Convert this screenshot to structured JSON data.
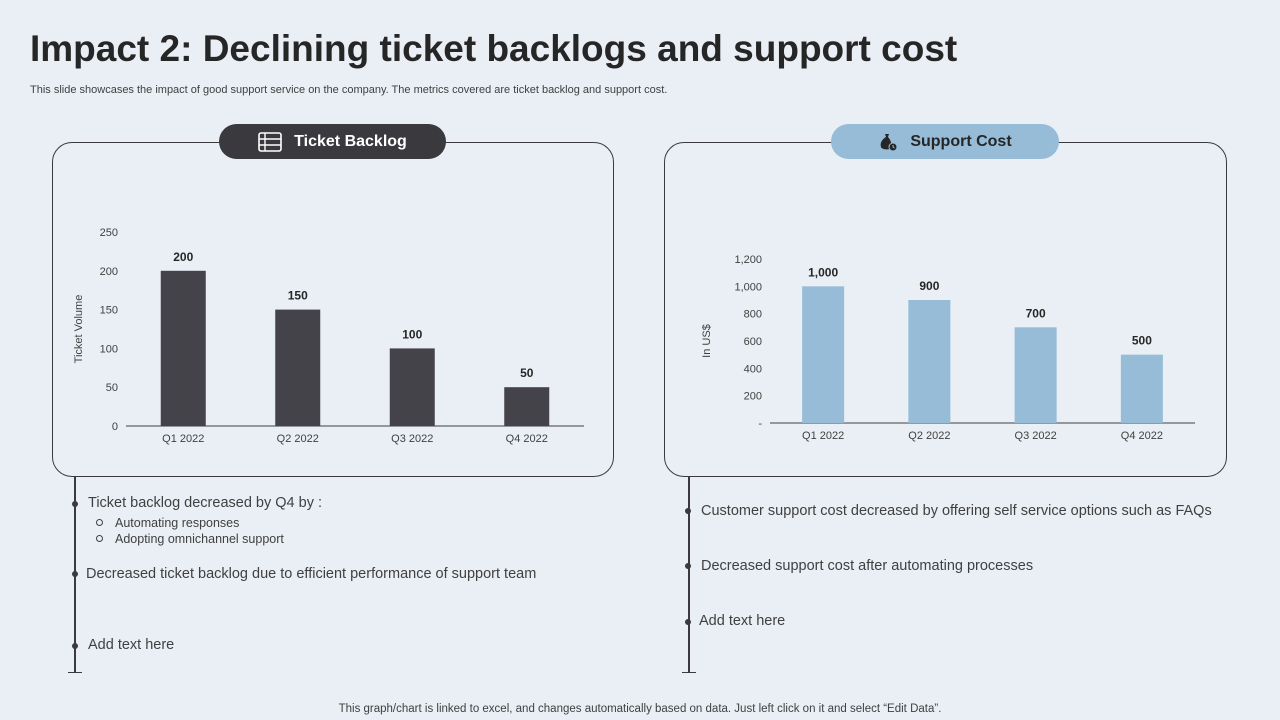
{
  "slide": {
    "title": "Impact 2: Declining ticket backlogs and support cost",
    "subtitle": "This slide showcases the impact of good support service on the company. The metrics covered are ticket backlog and support cost.",
    "footer": "This graph/chart is linked to excel,  and changes automatically based on data. Just left click on it and select “Edit Data”."
  },
  "left_panel": {
    "label": "Ticket Backlog",
    "icon": "list-icon",
    "bullets": [
      {
        "text": "Ticket backlog decreased by Q4 by :",
        "subs": [
          "Automating responses",
          "Adopting  omnichannel  support"
        ]
      },
      {
        "text": "Decreased ticket backlog due to efficient performance of support team"
      },
      {
        "text": "Add text here"
      }
    ]
  },
  "right_panel": {
    "label": "Support Cost",
    "icon": "money-bag-icon",
    "bullets": [
      {
        "text": "Customer support cost decreased by offering self service options such as FAQs"
      },
      {
        "text": " Decreased support cost after automating processes"
      },
      {
        "text": "Add text here"
      }
    ]
  },
  "colors": {
    "dark_bar": "#444349",
    "light_bar": "#96bcd7",
    "background": "#e9eff5"
  },
  "chart_data": [
    {
      "type": "bar",
      "title": "",
      "categories": [
        "Q1 2022",
        "Q2 2022",
        "Q3 2022",
        "Q4 2022"
      ],
      "values": [
        200,
        150,
        100,
        50
      ],
      "value_labels": [
        "200",
        "150",
        "100",
        "50"
      ],
      "ylabel": "Ticket Volume",
      "xlabel": "",
      "ylim": [
        0,
        250
      ],
      "yticks": [
        0,
        50,
        100,
        150,
        200,
        250
      ],
      "ytick_labels": [
        "0",
        "50",
        "100",
        "150",
        "200",
        "250"
      ],
      "color": "#444349",
      "grid": false
    },
    {
      "type": "bar",
      "title": "",
      "categories": [
        "Q1 2022",
        "Q2 2022",
        "Q3 2022",
        "Q4 2022"
      ],
      "values": [
        1000,
        900,
        700,
        500
      ],
      "value_labels": [
        "1,000",
        "900",
        "700",
        "500"
      ],
      "ylabel": "In US$",
      "xlabel": "",
      "ylim": [
        0,
        1200
      ],
      "yticks": [
        0,
        200,
        400,
        600,
        800,
        1000,
        1200
      ],
      "ytick_labels": [
        "-",
        "200",
        "400",
        "600",
        "800",
        "1,000",
        "1,200"
      ],
      "color": "#96bcd7",
      "grid": false
    }
  ]
}
